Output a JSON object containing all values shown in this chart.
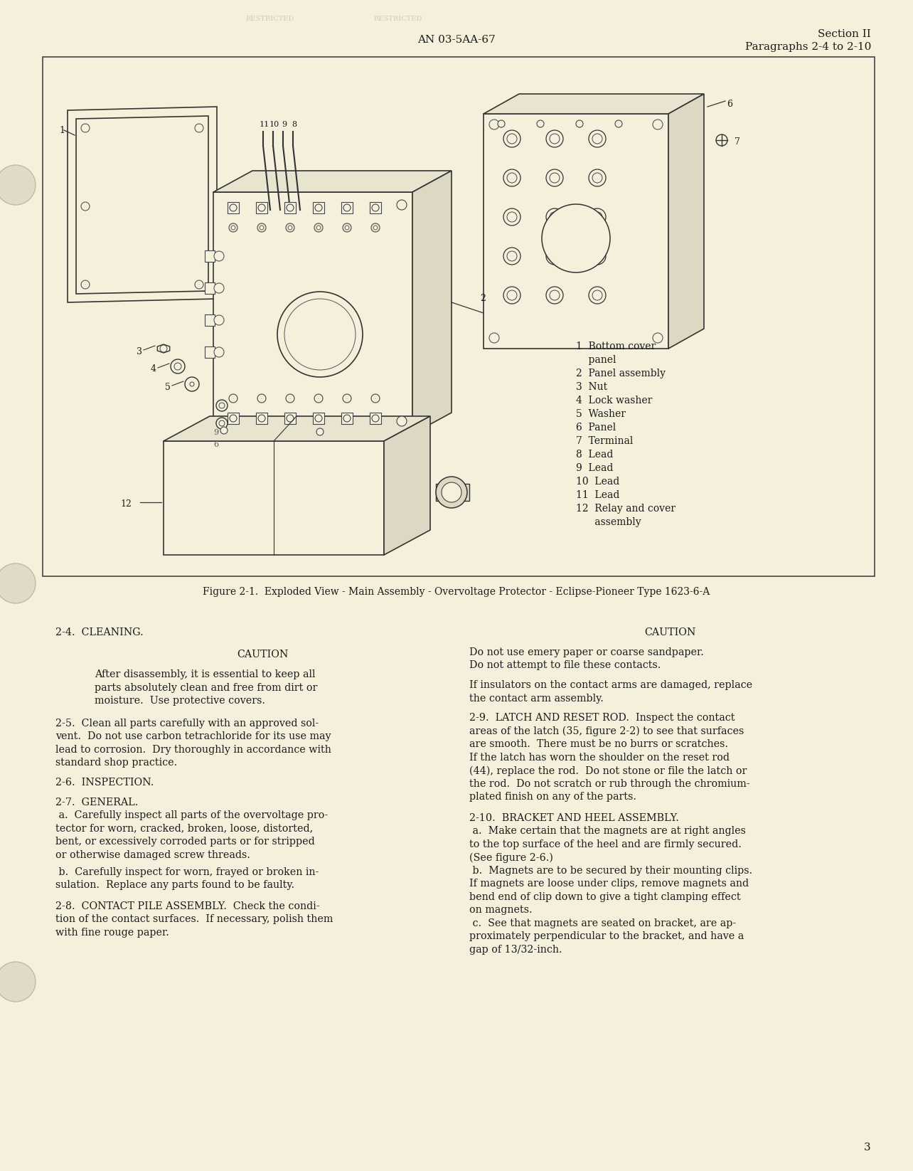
{
  "page_bg_color": "#f5f0dc",
  "header_center": "AN 03-5AA-67",
  "header_right_line1": "Section II",
  "header_right_line2": "Paragraphs 2-4 to 2-10",
  "figure_caption": "Figure 2-1.  Exploded View - Main Assembly - Overvoltage Protector - Eclipse-Pioneer Type 1623-6-A",
  "parts_list": [
    "1  Bottom cover",
    "    panel",
    "2  Panel assembly",
    "3  Nut",
    "4  Lock washer",
    "5  Washer",
    "6  Panel",
    "7  Terminal",
    "8  Lead",
    "9  Lead",
    "10  Lead",
    "11  Lead",
    "12  Relay and cover",
    "      assembly"
  ],
  "section_24_title": "2-4.  CLEANING.",
  "caution_left_title": "CAUTION",
  "caution_left_text_1": "After disassembly, it is essential to keep all",
  "caution_left_text_2": "parts absolutely clean and free from dirt or",
  "caution_left_text_3": "moisture.  Use protective covers.",
  "para_25_lines": [
    "2-5.  Clean all parts carefully with an approved sol-",
    "vent.  Do not use carbon tetrachloride for its use may",
    "lead to corrosion.  Dry thoroughly in accordance with",
    "standard shop practice."
  ],
  "para_26_title": "2-6.  INSPECTION.",
  "para_27_title": "2-7.  GENERAL.",
  "para_27a_lines": [
    " a.  Carefully inspect all parts of the overvoltage pro-",
    "tector for worn, cracked, broken, loose, distorted,",
    "bent, or excessively corroded parts or for stripped",
    "or otherwise damaged screw threads."
  ],
  "para_27b_lines": [
    " b.  Carefully inspect for worn, frayed or broken in-",
    "sulation.  Replace any parts found to be faulty."
  ],
  "para_28_lines": [
    "2-8.  CONTACT PILE ASSEMBLY.  Check the condi-",
    "tion of the contact surfaces.  If necessary, polish them",
    "with fine rouge paper."
  ],
  "caution_right_title": "CAUTION",
  "caution_right_text_1": "Do not use emery paper or coarse sandpaper.",
  "caution_right_text_2": "Do not attempt to file these contacts.",
  "para_right_1a": "If insulators on the contact arms are damaged, replace",
  "para_right_1b": "the contact arm assembly.",
  "para_29_title": "2-9.  LATCH AND RESET ROD.",
  "para_29_lines": [
    "2-9.  LATCH AND RESET ROD.  Inspect the contact",
    "areas of the latch (35, figure 2-2) to see that surfaces",
    "are smooth.  There must be no burrs or scratches.",
    "If the latch has worn the shoulder on the reset rod",
    "(44), replace the rod.  Do not stone or file the latch or",
    "the rod.  Do not scratch or rub through the chromium-",
    "plated finish on any of the parts."
  ],
  "para_210_lines": [
    "2-10.  BRACKET AND HEEL ASSEMBLY.",
    " a.  Make certain that the magnets are at right angles",
    "to the top surface of the heel and are firmly secured.",
    "(See figure 2-6.)",
    " b.  Magnets are to be secured by their mounting clips.",
    "If magnets are loose under clips, remove magnets and",
    "bend end of clip down to give a tight clamping effect",
    "on magnets.",
    " c.  See that magnets are seated on bracket, are ap-",
    "proximately perpendicular to the bracket, and have a",
    "gap of 13/32-inch."
  ],
  "page_number": "3",
  "text_color": "#1a1a1a",
  "font_family": "DejaVu Serif"
}
